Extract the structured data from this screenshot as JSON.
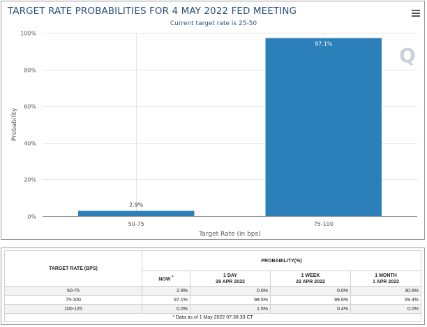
{
  "chart_data": {
    "type": "bar",
    "title": "TARGET RATE PROBABILITIES FOR 4 MAY 2022 FED MEETING",
    "subtitle": "Current target rate is 25-50",
    "categories": [
      "50-75",
      "75-100"
    ],
    "values": [
      2.9,
      97.1
    ],
    "data_labels": [
      "2.9%",
      "97.1%"
    ],
    "xlabel": "Target Rate (in bps)",
    "ylabel": "Probability",
    "ylim": [
      0,
      100
    ],
    "yticks": [
      0,
      20,
      40,
      60,
      80,
      100
    ],
    "ytick_labels": [
      "0%",
      "20%",
      "40%",
      "60%",
      "80%",
      "100%"
    ],
    "bar_color": "#2b80b9",
    "grid": true,
    "legend": "none"
  },
  "table": {
    "col_target": "TARGET RATE (BPS)",
    "col_probability": "PROBABILITY(%)",
    "sub_now": "NOW",
    "sub_now_mark": "*",
    "sub_1day": "1 DAY",
    "sub_1day_date": "29 APR 2022",
    "sub_1week": "1 WEEK",
    "sub_1week_date": "22 APR 2022",
    "sub_1month": "1 MONTH",
    "sub_1month_date": "1 APR 2022",
    "rows": [
      {
        "range": "50-75",
        "now": "2.9%",
        "day": "0.0%",
        "week": "0.0%",
        "month": "30.6%"
      },
      {
        "range": "75-100",
        "now": "97.1%",
        "day": "98.5%",
        "week": "99.6%",
        "month": "69.4%"
      },
      {
        "range": "100-125",
        "now": "0.0%",
        "day": "1.5%",
        "week": "0.4%",
        "month": "0.0%"
      }
    ],
    "footnote": "* Data as of 1 May 2022 07:38:33 CT"
  },
  "watermark_letter": "Q",
  "icons": {
    "menu": "hamburger-menu-icon"
  }
}
